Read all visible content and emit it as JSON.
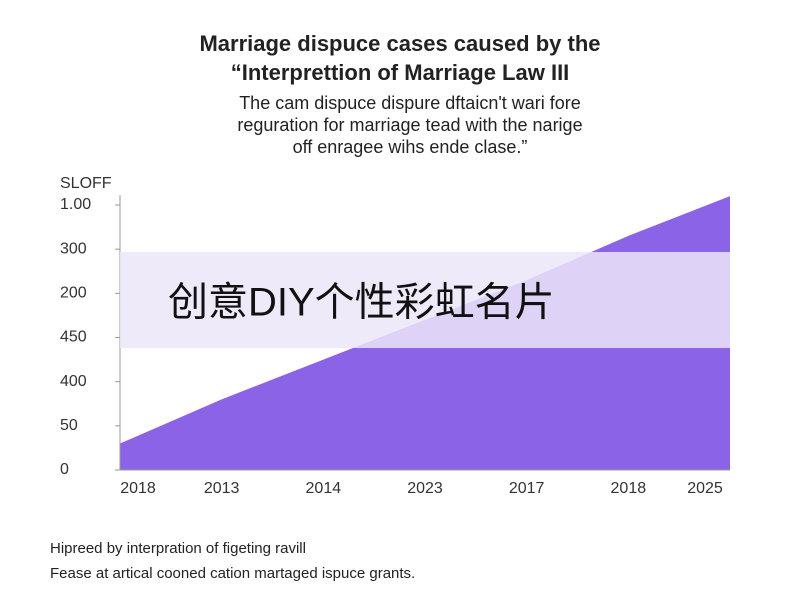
{
  "chart_data": {
    "type": "area",
    "title": [
      "Marriage dispuce cases caused by the",
      "“Interprettion of Marriage Law III"
    ],
    "subtitle": [
      "The cam dispuce dispure dftaicn't wari fore",
      "reguration for marriage tead with the narige",
      "off enragee wihs ende clase.”"
    ],
    "ylabel": "SLOFF",
    "categories": [
      "2018",
      "2013",
      "2014",
      "2023",
      "2017",
      "2018",
      "2025"
    ],
    "series": [
      {
        "color": "#8a63e6",
        "values": [
          0.6,
          1.6,
          2.5,
          3.4,
          4.3,
          5.3,
          6.2
        ]
      }
    ],
    "ylim": [
      0,
      6.2
    ],
    "yticks": [
      {
        "value": 0,
        "label": "0"
      },
      {
        "value": 1,
        "label": "50"
      },
      {
        "value": 2,
        "label": "400"
      },
      {
        "value": 3,
        "label": "450"
      },
      {
        "value": 4,
        "label": "200"
      },
      {
        "value": 5,
        "label": "300"
      },
      {
        "value": 6,
        "label": "1.00"
      }
    ],
    "watermark": "创意DIY个性彩虹名片",
    "footnotes": [
      "Hipreed by interpration of figeting ravill",
      "Fease at artical cooned cation martaged ispuce grants."
    ]
  }
}
